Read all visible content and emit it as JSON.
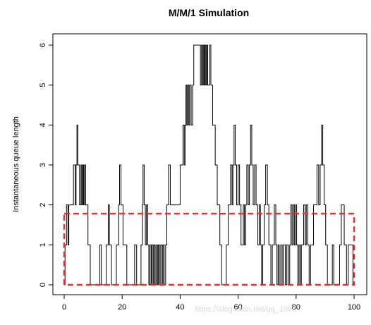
{
  "chart_data": {
    "type": "line",
    "title": "M/M/1 Simulation",
    "xlabel": "",
    "ylabel": "Instantaneous queue length",
    "xlim": [
      0,
      100
    ],
    "ylim": [
      0,
      6
    ],
    "xticks": [
      "0",
      "20",
      "40",
      "60",
      "80",
      "100"
    ],
    "yticks": [
      "0",
      "1",
      "2",
      "3",
      "4",
      "5",
      "6"
    ],
    "grid": false,
    "series": [
      {
        "style": "step",
        "color": "#000000",
        "points": [
          [
            0,
            0
          ],
          [
            0.3,
            1
          ],
          [
            0.8,
            2
          ],
          [
            1.3,
            1
          ],
          [
            1.6,
            2
          ],
          [
            3.2,
            3
          ],
          [
            3.8,
            2
          ],
          [
            4.1,
            3
          ],
          [
            4.4,
            4
          ],
          [
            4.7,
            3
          ],
          [
            5.3,
            2
          ],
          [
            5.8,
            3
          ],
          [
            6.1,
            2
          ],
          [
            6.4,
            3
          ],
          [
            6.7,
            2
          ],
          [
            7.0,
            3
          ],
          [
            7.4,
            2
          ],
          [
            8.2,
            1
          ],
          [
            9.0,
            0
          ],
          [
            12.3,
            1
          ],
          [
            12.8,
            0
          ],
          [
            14.5,
            1
          ],
          [
            15.2,
            2
          ],
          [
            15.6,
            1
          ],
          [
            16.3,
            0
          ],
          [
            18.0,
            1
          ],
          [
            18.8,
            2
          ],
          [
            19.1,
            3
          ],
          [
            19.6,
            2
          ],
          [
            20.3,
            1
          ],
          [
            21.6,
            0
          ],
          [
            24.3,
            1
          ],
          [
            25.0,
            0
          ],
          [
            26.5,
            1
          ],
          [
            27.0,
            2
          ],
          [
            27.2,
            3
          ],
          [
            27.6,
            2
          ],
          [
            28.0,
            1
          ],
          [
            28.4,
            2
          ],
          [
            28.8,
            1
          ],
          [
            29.2,
            0
          ],
          [
            29.6,
            1
          ],
          [
            30.0,
            0
          ],
          [
            30.3,
            1
          ],
          [
            30.7,
            0
          ],
          [
            31.0,
            1
          ],
          [
            31.4,
            0
          ],
          [
            31.8,
            1
          ],
          [
            32.2,
            0
          ],
          [
            32.5,
            1
          ],
          [
            32.9,
            0
          ],
          [
            33.3,
            1
          ],
          [
            33.8,
            0
          ],
          [
            34.1,
            1
          ],
          [
            34.5,
            0
          ],
          [
            35.0,
            1
          ],
          [
            35.4,
            2
          ],
          [
            36.0,
            3
          ],
          [
            36.6,
            2
          ],
          [
            40.0,
            3
          ],
          [
            41.0,
            4
          ],
          [
            41.4,
            3
          ],
          [
            41.7,
            4
          ],
          [
            42.0,
            5
          ],
          [
            42.3,
            4
          ],
          [
            42.6,
            5
          ],
          [
            43.0,
            4
          ],
          [
            43.3,
            5
          ],
          [
            43.8,
            4
          ],
          [
            44.3,
            5
          ],
          [
            44.7,
            6
          ],
          [
            47.0,
            5
          ],
          [
            47.4,
            6
          ],
          [
            47.7,
            5
          ],
          [
            48.0,
            6
          ],
          [
            48.3,
            5
          ],
          [
            48.6,
            6
          ],
          [
            48.9,
            5
          ],
          [
            49.2,
            6
          ],
          [
            49.5,
            5
          ],
          [
            50.2,
            6
          ],
          [
            50.6,
            5
          ],
          [
            51.2,
            4
          ],
          [
            52.1,
            3
          ],
          [
            52.8,
            2
          ],
          [
            53.7,
            1
          ],
          [
            54.3,
            0
          ],
          [
            55.9,
            1
          ],
          [
            56.6,
            2
          ],
          [
            57.4,
            3
          ],
          [
            57.9,
            2
          ],
          [
            58.2,
            3
          ],
          [
            58.6,
            4
          ],
          [
            59.0,
            3
          ],
          [
            59.5,
            2
          ],
          [
            60.0,
            3
          ],
          [
            60.5,
            2
          ],
          [
            61.0,
            1
          ],
          [
            61.8,
            2
          ],
          [
            62.2,
            1
          ],
          [
            62.6,
            2
          ],
          [
            63.0,
            3
          ],
          [
            63.5,
            2
          ],
          [
            63.9,
            3
          ],
          [
            64.3,
            4
          ],
          [
            64.7,
            3
          ],
          [
            65.2,
            2
          ],
          [
            65.7,
            3
          ],
          [
            66.2,
            2
          ],
          [
            66.8,
            1
          ],
          [
            67.3,
            2
          ],
          [
            67.7,
            1
          ],
          [
            68.1,
            0
          ],
          [
            68.5,
            1
          ],
          [
            69.0,
            2
          ],
          [
            69.5,
            3
          ],
          [
            70.1,
            2
          ],
          [
            70.6,
            1
          ],
          [
            71.3,
            0
          ],
          [
            71.8,
            1
          ],
          [
            72.5,
            2
          ],
          [
            73.0,
            1
          ],
          [
            73.4,
            0
          ],
          [
            73.8,
            1
          ],
          [
            74.2,
            0
          ],
          [
            74.7,
            1
          ],
          [
            75.2,
            0
          ],
          [
            75.6,
            1
          ],
          [
            76.3,
            0
          ],
          [
            76.8,
            1
          ],
          [
            77.3,
            0
          ],
          [
            77.8,
            1
          ],
          [
            78.2,
            2
          ],
          [
            78.6,
            1
          ],
          [
            79.0,
            2
          ],
          [
            79.4,
            1
          ],
          [
            79.8,
            2
          ],
          [
            80.2,
            1
          ],
          [
            80.6,
            0
          ],
          [
            81.0,
            1
          ],
          [
            81.4,
            0
          ],
          [
            81.8,
            1
          ],
          [
            82.6,
            2
          ],
          [
            83.1,
            1
          ],
          [
            83.5,
            2
          ],
          [
            84.0,
            1
          ],
          [
            84.5,
            0
          ],
          [
            85.0,
            1
          ],
          [
            86.0,
            2
          ],
          [
            87.2,
            3
          ],
          [
            87.8,
            2
          ],
          [
            88.3,
            3
          ],
          [
            88.8,
            4
          ],
          [
            89.2,
            3
          ],
          [
            89.7,
            2
          ],
          [
            90.2,
            1
          ],
          [
            90.8,
            0
          ],
          [
            92.5,
            1
          ],
          [
            93.0,
            0
          ],
          [
            95.0,
            1
          ],
          [
            95.6,
            2
          ],
          [
            96.6,
            1
          ],
          [
            97.4,
            0
          ],
          [
            98.0,
            1
          ],
          [
            99.6,
            0
          ],
          [
            100,
            0
          ]
        ]
      }
    ],
    "annotations": [
      {
        "type": "rect",
        "style": "dashed",
        "color": "#e53333",
        "x": [
          0,
          100
        ],
        "y": [
          0,
          1.78
        ]
      }
    ]
  },
  "watermark": "https://blog.csdn.net/qq_1960..."
}
